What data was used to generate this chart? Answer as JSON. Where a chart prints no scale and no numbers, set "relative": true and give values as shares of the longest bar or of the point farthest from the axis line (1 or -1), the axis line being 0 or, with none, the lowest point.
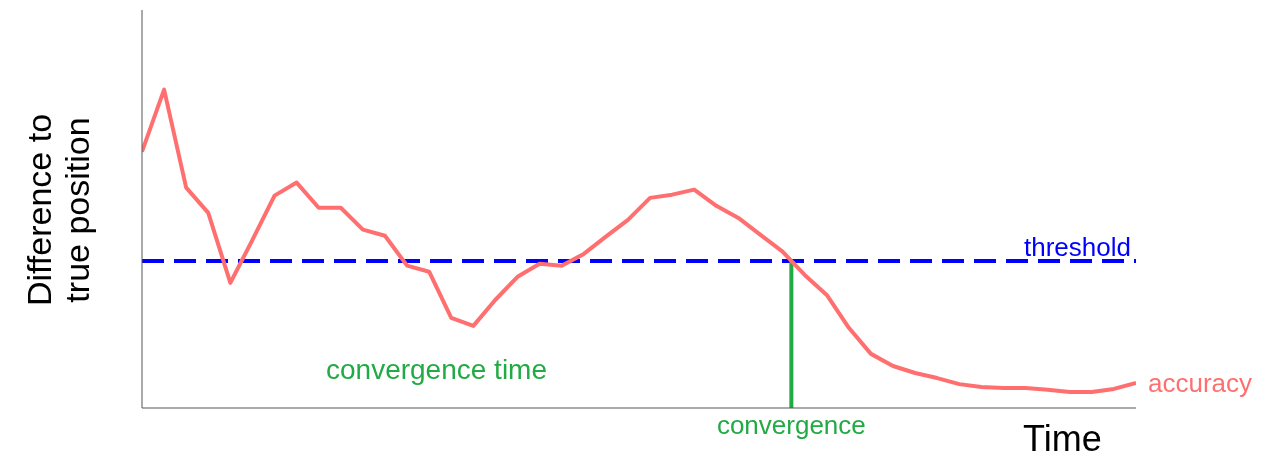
{
  "chart_data": {
    "type": "line",
    "relative": true,
    "xlabel": "Time",
    "ylabel": "Difference to true position",
    "marker": "none",
    "line_style": "solid",
    "legend": false,
    "grid": false,
    "categories": [
      null,
      null,
      null,
      null,
      null,
      null,
      null,
      null,
      null,
      null,
      null,
      null,
      null,
      null,
      null,
      null,
      null,
      null,
      null,
      null,
      null,
      null,
      null,
      null,
      null,
      null,
      null,
      null,
      null,
      null,
      null,
      null,
      null,
      null,
      null,
      null,
      null,
      null,
      null,
      null,
      null,
      null,
      null,
      null,
      null,
      null
    ],
    "series": [
      {
        "name": "accuracy",
        "color": "#ff6f6f",
        "values": [
          0.805,
          1,
          0.692,
          0.613,
          0.393,
          0.528,
          0.667,
          0.708,
          0.629,
          0.629,
          0.56,
          0.541,
          0.447,
          0.428,
          0.283,
          0.258,
          0.34,
          0.412,
          0.453,
          0.447,
          0.484,
          0.538,
          0.591,
          0.66,
          0.67,
          0.686,
          0.635,
          0.597,
          0.544,
          0.491,
          0.418,
          0.355,
          0.252,
          0.17,
          0.132,
          0.11,
          0.094,
          0.075,
          0.066,
          0.063,
          0.063,
          0.057,
          0.05,
          0.05,
          0.06,
          0.079
        ]
      }
    ],
    "ref_lines": [
      {
        "axis": "y",
        "value": 0.462,
        "label": "threshold",
        "color": "#0000ff",
        "line_style": "dashed"
      },
      {
        "axis": "x",
        "label": "convergence",
        "color": "#22aa44",
        "line_style": "solid"
      }
    ],
    "annotations": [
      "convergence time"
    ]
  }
}
